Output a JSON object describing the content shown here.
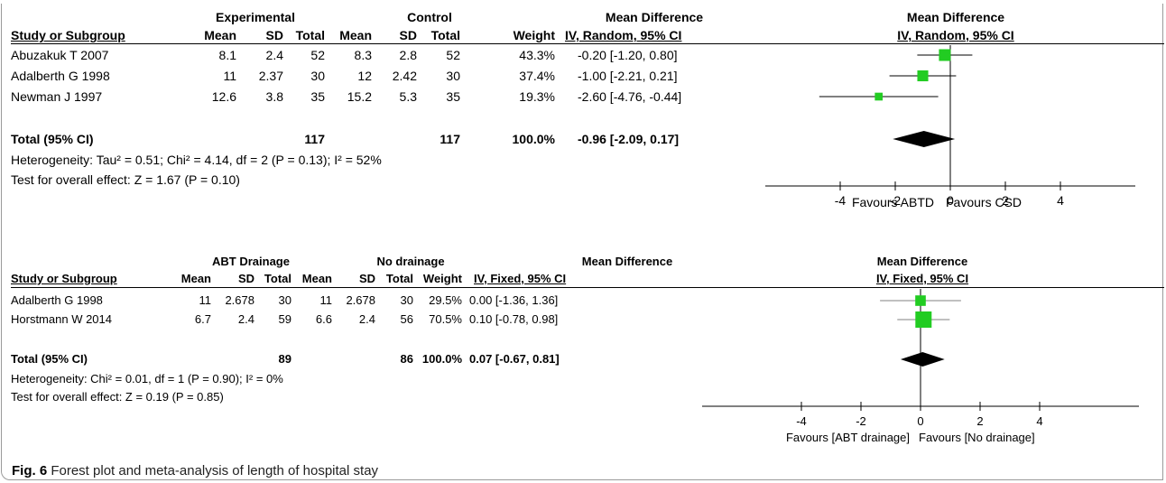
{
  "caption": {
    "label": "Fig. 6",
    "text": "Forest plot and meta-analysis of length of hospital stay"
  },
  "columns": {
    "study": "Study or Subgroup",
    "mean": "Mean",
    "sd": "SD",
    "total": "Total",
    "weight": "Weight",
    "md": "Mean Difference"
  },
  "chart_data": [
    {
      "type": "table",
      "group1": "Experimental",
      "group2": "Control",
      "method": "IV, Random, 95% CI",
      "rows": [
        {
          "study": "Abuzakuk T 2007",
          "m1": "8.1",
          "sd1": "2.4",
          "n1": "52",
          "m2": "8.3",
          "sd2": "2.8",
          "n2": "52",
          "weight": "43.3%",
          "ci": "-0.20 [-1.20, 0.80]",
          "est": -0.2,
          "lo": -1.2,
          "hi": 0.8,
          "w": 43.3
        },
        {
          "study": "Adalberth G 1998",
          "m1": "11",
          "sd1": "2.37",
          "n1": "30",
          "m2": "12",
          "sd2": "2.42",
          "n2": "30",
          "weight": "37.4%",
          "ci": "-1.00 [-2.21, 0.21]",
          "est": -1.0,
          "lo": -2.21,
          "hi": 0.21,
          "w": 37.4
        },
        {
          "study": "Newman J 1997",
          "m1": "12.6",
          "sd1": "3.8",
          "n1": "35",
          "m2": "15.2",
          "sd2": "5.3",
          "n2": "35",
          "weight": "19.3%",
          "ci": "-2.60 [-4.76, -0.44]",
          "est": -2.6,
          "lo": -4.76,
          "hi": -0.44,
          "w": 19.3
        }
      ],
      "total": {
        "label": "Total (95% CI)",
        "n1": "117",
        "n2": "117",
        "weight": "100.0%",
        "ci": "-0.96 [-2.09, 0.17]",
        "est": -0.96,
        "lo": -2.09,
        "hi": 0.17
      },
      "heterogeneity": "Heterogeneity: Tau² = 0.51; Chi² = 4.14, df = 2 (P = 0.13); I² = 52%",
      "overall": "Test for overall effect: Z = 1.67 (P = 0.10)",
      "xticks": [
        -4,
        -2,
        0,
        2,
        4
      ],
      "xlim": [
        -6,
        6
      ],
      "favours_left": "Favours ABTD",
      "favours_right": "Favours CSD",
      "marker_color": "#22cc22",
      "line_color": "#000000"
    },
    {
      "type": "table",
      "group1": "ABT Drainage",
      "group2": "No drainage",
      "method": "IV, Fixed, 95% CI",
      "rows": [
        {
          "study": "Adalberth G 1998",
          "m1": "11",
          "sd1": "2.678",
          "n1": "30",
          "m2": "11",
          "sd2": "2.678",
          "n2": "30",
          "weight": "29.5%",
          "ci": "0.00 [-1.36, 1.36]",
          "est": 0.0,
          "lo": -1.36,
          "hi": 1.36,
          "w": 29.5
        },
        {
          "study": "Horstmann W 2014",
          "m1": "6.7",
          "sd1": "2.4",
          "n1": "59",
          "m2": "6.6",
          "sd2": "2.4",
          "n2": "56",
          "weight": "70.5%",
          "ci": "0.10 [-0.78, 0.98]",
          "est": 0.1,
          "lo": -0.78,
          "hi": 0.98,
          "w": 70.5
        }
      ],
      "total": {
        "label": "Total (95% CI)",
        "n1": "89",
        "n2": "86",
        "weight": "100.0%",
        "ci": "0.07 [-0.67, 0.81]",
        "est": 0.07,
        "lo": -0.67,
        "hi": 0.81
      },
      "heterogeneity": "Heterogeneity: Chi² = 0.01, df = 1 (P = 0.90); I² = 0%",
      "overall": "Test for overall effect: Z = 0.19 (P = 0.85)",
      "xticks": [
        -4,
        -2,
        0,
        2,
        4
      ],
      "xlim": [
        -6,
        6
      ],
      "favours_left": "Favours [ABT drainage]",
      "favours_right": "Favours [No drainage]",
      "marker_color": "#22cc22",
      "line_color": "#808080"
    }
  ]
}
